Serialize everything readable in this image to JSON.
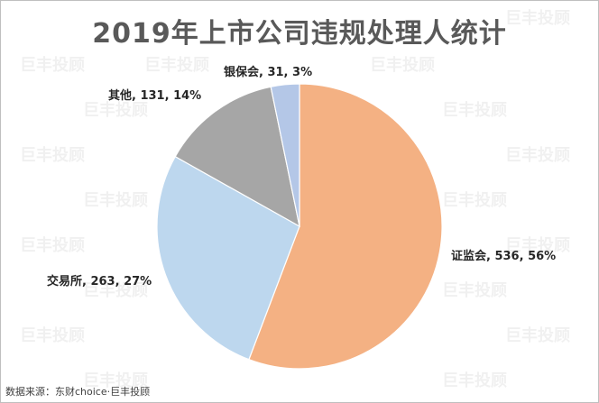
{
  "chart_data": {
    "type": "pie",
    "title": "2019年上市公司违规处理人统计",
    "slices": [
      {
        "name": "证监会",
        "value": 536,
        "percent": "56%",
        "color": "#f4b183",
        "label": "证监会, 536, 56%"
      },
      {
        "name": "交易所",
        "value": 263,
        "percent": "27%",
        "color": "#bdd7ee",
        "label": "交易所, 263, 27%"
      },
      {
        "name": "其他",
        "value": 131,
        "percent": "14%",
        "color": "#a6a6a6",
        "label": "其他, 131, 14%"
      },
      {
        "name": "银保会",
        "value": 31,
        "percent": "3%",
        "color": "#b4c7e7",
        "label": "银保会, 31, 3%"
      }
    ]
  },
  "source": "数据来源：东财choice·巨丰投顾",
  "watermark": "巨丰投顾"
}
